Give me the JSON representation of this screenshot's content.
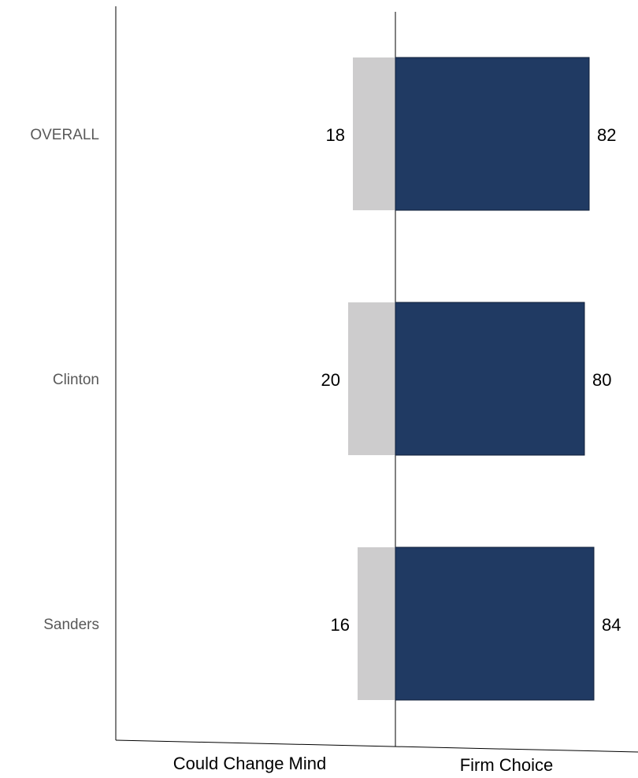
{
  "chart_data": {
    "type": "bar",
    "orientation": "horizontal-diverging",
    "categories": [
      "OVERALL",
      "Clinton",
      "Sanders"
    ],
    "series": [
      {
        "name": "Could Change Mind",
        "values": [
          18,
          20,
          16
        ],
        "color": "#cdcccd"
      },
      {
        "name": "Firm Choice",
        "values": [
          82,
          80,
          84
        ],
        "color": "#203a63"
      }
    ],
    "xlabel_left": "Could Change Mind",
    "xlabel_right": "Firm Choice",
    "grid": false
  }
}
